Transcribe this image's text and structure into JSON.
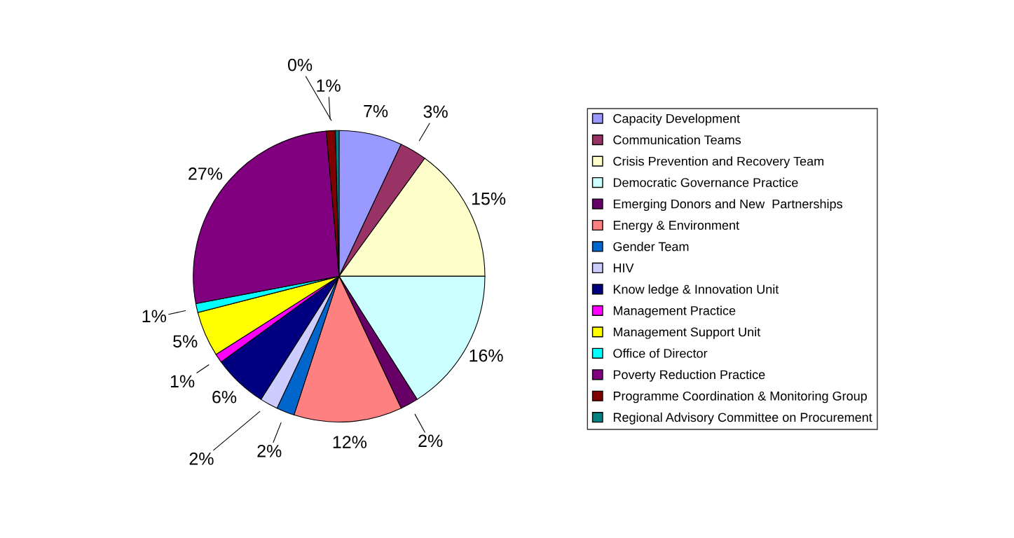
{
  "chart_data": {
    "type": "pie",
    "categories": [
      "Capacity Development",
      "Communication Teams",
      "Crisis Prevention and Recovery Team",
      "Democratic Governance Practice",
      "Emerging Donors and New  Partnerships",
      "Energy & Environment",
      "Gender Team",
      "HIV",
      "Know ledge & Innovation Unit",
      "Management Practice",
      "Management Support Unit",
      "Office of Director",
      "Poverty Reduction Practice",
      "Programme Coordination & Monitoring Group",
      "Regional Advisory Committee on Procurement"
    ],
    "values": [
      7,
      3,
      15,
      16,
      2,
      12,
      2,
      2,
      6,
      1,
      5,
      1,
      26.6,
      1,
      0.4
    ],
    "value_labels": [
      "7%",
      "3%",
      "15%",
      "16%",
      "2%",
      "12%",
      "2%",
      "2%",
      "6%",
      "1%",
      "5%",
      "1%",
      "27%",
      "1%",
      "0%"
    ],
    "colors": [
      "#9999ff",
      "#993366",
      "#ffffcc",
      "#ccffff",
      "#660066",
      "#ff8080",
      "#0066cc",
      "#ccccff",
      "#000080",
      "#ff00ff",
      "#ffff00",
      "#00ffff",
      "#800080",
      "#800000",
      "#008080"
    ],
    "legend": "right"
  }
}
